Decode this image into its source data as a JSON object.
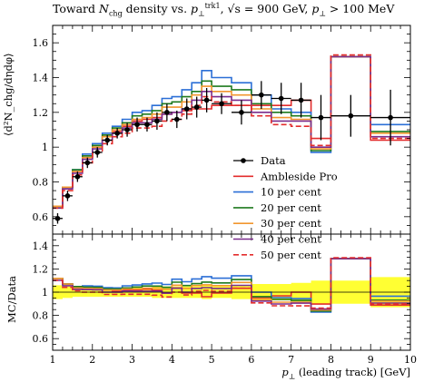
{
  "title": "Toward N_chg density vs. p_⊥^trk1, √s = 900 GeV, p_⊥ > 100 MeV",
  "title_parts": {
    "pre": "Toward ",
    "n": "N",
    "chg": "chg",
    "mid": " density vs. ",
    "p": "p",
    "perp": "⊥",
    "trk": "trk1",
    "sqrt": ", √s = 900 GeV, ",
    "cut": "p",
    "cutsub": "⊥",
    "cutval": " > 100 MeV"
  },
  "chart_data": [
    {
      "type": "line",
      "panel": "main",
      "xlabel": "p_⊥ (leading track) [GeV]",
      "xlabel_parts": {
        "p": "p",
        "sub": "⊥",
        "rest": " (leading track) [GeV]"
      },
      "ylabel": "⟨d²N_chg/dηdφ⟩",
      "xlim": [
        1,
        10
      ],
      "ylim": [
        0.5,
        1.7
      ],
      "yticks": [
        "0.6",
        "0.8",
        "1",
        "1.2",
        "1.4",
        "1.6"
      ],
      "ytick_values": [
        0.6,
        0.8,
        1.0,
        1.2,
        1.4,
        1.6
      ],
      "xticks": [
        "1",
        "2",
        "3",
        "4",
        "5",
        "6",
        "7",
        "8",
        "9",
        "10"
      ],
      "bin_edges": [
        1.0,
        1.25,
        1.5,
        1.75,
        2.0,
        2.25,
        2.5,
        2.75,
        3.0,
        3.25,
        3.5,
        3.75,
        4.0,
        4.25,
        4.5,
        4.75,
        5.0,
        5.5,
        6.0,
        6.5,
        7.0,
        7.5,
        8.0,
        9.0,
        10.0
      ],
      "data": {
        "name": "Data",
        "x": [
          1.125,
          1.375,
          1.625,
          1.875,
          2.125,
          2.375,
          2.625,
          2.875,
          3.125,
          3.375,
          3.625,
          3.875,
          4.125,
          4.375,
          4.625,
          4.875,
          5.25,
          5.75,
          6.25,
          6.75,
          7.25,
          7.75,
          8.5,
          9.5
        ],
        "y": [
          0.59,
          0.72,
          0.83,
          0.91,
          0.97,
          1.04,
          1.08,
          1.1,
          1.13,
          1.13,
          1.15,
          1.2,
          1.16,
          1.22,
          1.23,
          1.27,
          1.25,
          1.2,
          1.3,
          1.28,
          1.27,
          1.17,
          1.18,
          1.17
        ],
        "yerr": [
          0.03,
          0.03,
          0.03,
          0.03,
          0.03,
          0.03,
          0.03,
          0.04,
          0.04,
          0.04,
          0.05,
          0.05,
          0.05,
          0.06,
          0.06,
          0.07,
          0.06,
          0.07,
          0.08,
          0.09,
          0.1,
          0.13,
          0.12,
          0.16
        ]
      },
      "series": [
        {
          "name": "Ambleside Pro",
          "color": "#e32d2d",
          "values": [
            0.66,
            0.77,
            0.86,
            0.94,
            1.0,
            1.06,
            1.09,
            1.12,
            1.15,
            1.16,
            1.17,
            1.19,
            1.2,
            1.21,
            1.22,
            1.22,
            1.24,
            1.24,
            1.24,
            1.24,
            1.27,
            1.05,
            1.52,
            1.04
          ],
          "dash": ""
        },
        {
          "name": "10 per cent",
          "color": "#2b6fd6",
          "values": [
            0.66,
            0.77,
            0.87,
            0.96,
            1.02,
            1.08,
            1.12,
            1.16,
            1.2,
            1.21,
            1.24,
            1.28,
            1.29,
            1.33,
            1.37,
            1.44,
            1.4,
            1.37,
            1.3,
            1.22,
            1.2,
            0.97,
            1.52,
            1.13
          ],
          "dash": ""
        },
        {
          "name": "20 per cent",
          "color": "#1f7a1f",
          "values": [
            0.66,
            0.77,
            0.87,
            0.95,
            1.01,
            1.07,
            1.11,
            1.14,
            1.18,
            1.19,
            1.21,
            1.25,
            1.26,
            1.29,
            1.32,
            1.38,
            1.35,
            1.33,
            1.25,
            1.2,
            1.18,
            0.98,
            1.52,
            1.09
          ],
          "dash": ""
        },
        {
          "name": "30 per cent",
          "color": "#f2962f",
          "values": [
            0.66,
            0.77,
            0.86,
            0.94,
            1.0,
            1.06,
            1.1,
            1.13,
            1.16,
            1.17,
            1.19,
            1.23,
            1.23,
            1.26,
            1.3,
            1.35,
            1.32,
            1.3,
            1.22,
            1.17,
            1.16,
            0.99,
            1.52,
            1.08
          ],
          "dash": ""
        },
        {
          "name": "40 per cent",
          "color": "#7a2c8c",
          "values": [
            0.65,
            0.76,
            0.85,
            0.93,
            0.99,
            1.04,
            1.08,
            1.11,
            1.14,
            1.14,
            1.16,
            1.19,
            1.2,
            1.22,
            1.27,
            1.32,
            1.29,
            1.27,
            1.2,
            1.15,
            1.15,
            1.0,
            1.52,
            1.06
          ],
          "dash": ""
        },
        {
          "name": "50 per cent",
          "color": "#e32d2d",
          "values": [
            0.65,
            0.75,
            0.84,
            0.91,
            0.97,
            1.02,
            1.06,
            1.08,
            1.11,
            1.11,
            1.12,
            1.15,
            1.16,
            1.19,
            1.24,
            1.29,
            1.26,
            1.24,
            1.18,
            1.13,
            1.12,
            1.01,
            1.53,
            1.05
          ],
          "dash": "6,3"
        }
      ],
      "legend_position": "center-right"
    },
    {
      "type": "line",
      "panel": "ratio",
      "ylabel": "MC/Data",
      "xlim": [
        1,
        10
      ],
      "ylim": [
        0.5,
        1.5
      ],
      "yticks": [
        "0.6",
        "0.8",
        "1",
        "1.2",
        "1.4"
      ],
      "ytick_values": [
        0.6,
        0.8,
        1.0,
        1.2,
        1.4
      ],
      "band_color": "#ffff33",
      "band_halfwidth": [
        0.06,
        0.05,
        0.04,
        0.04,
        0.04,
        0.04,
        0.04,
        0.04,
        0.04,
        0.04,
        0.05,
        0.05,
        0.05,
        0.05,
        0.05,
        0.06,
        0.05,
        0.06,
        0.07,
        0.07,
        0.08,
        0.1,
        0.1,
        0.13
      ]
    }
  ]
}
